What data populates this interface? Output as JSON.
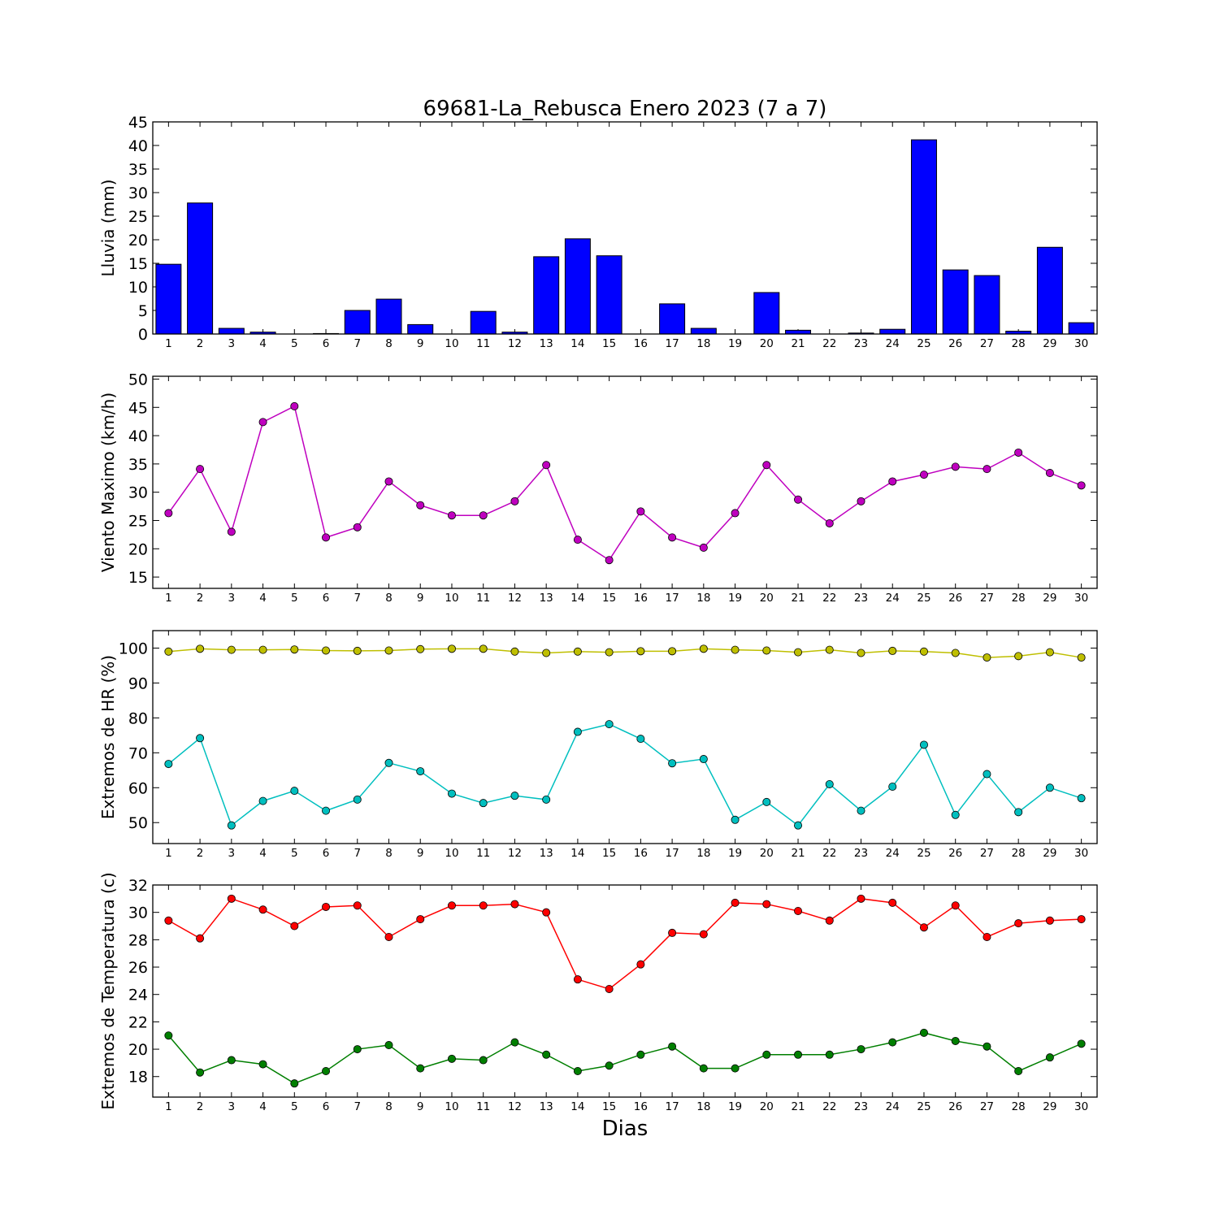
{
  "figure": {
    "title": "69681-La_Rebusca Enero 2023  (7 a 7)",
    "xlabel": "Dias"
  },
  "chart_data": [
    {
      "type": "bar",
      "ylabel": "Lluvia (mm)",
      "ylim": [
        0,
        45
      ],
      "yticks": [
        0,
        5,
        10,
        15,
        20,
        25,
        30,
        35,
        40,
        45
      ],
      "categories": [
        1,
        2,
        3,
        4,
        5,
        6,
        7,
        8,
        9,
        10,
        11,
        12,
        13,
        14,
        15,
        16,
        17,
        18,
        19,
        20,
        21,
        22,
        23,
        24,
        25,
        26,
        27,
        28,
        29,
        30
      ],
      "series": [
        {
          "color": "#0000ff",
          "values": [
            14.8,
            27.8,
            1.2,
            0.4,
            0,
            0.1,
            5.0,
            7.4,
            2.0,
            0,
            4.8,
            0.4,
            16.4,
            20.2,
            16.6,
            0,
            6.4,
            1.2,
            0,
            8.8,
            0.8,
            0,
            0.2,
            1.0,
            41.2,
            13.6,
            12.4,
            0.6,
            18.4,
            2.4
          ]
        }
      ]
    },
    {
      "type": "line",
      "ylabel": "Viento Maximo (km/h)",
      "ylim": [
        13,
        50.5
      ],
      "yticks": [
        15,
        20,
        25,
        30,
        35,
        40,
        45,
        50
      ],
      "x": [
        1,
        2,
        3,
        4,
        5,
        6,
        7,
        8,
        9,
        10,
        11,
        12,
        13,
        14,
        15,
        16,
        17,
        18,
        19,
        20,
        21,
        22,
        23,
        24,
        25,
        26,
        27,
        28,
        29,
        30
      ],
      "series": [
        {
          "color": "#bf00bf",
          "values": [
            26.3,
            34.1,
            23.0,
            42.4,
            45.2,
            22.0,
            23.8,
            31.9,
            27.7,
            25.9,
            25.9,
            28.4,
            34.8,
            21.6,
            18.0,
            26.6,
            22.0,
            20.2,
            26.3,
            34.8,
            28.7,
            24.5,
            28.4,
            31.9,
            33.1,
            34.5,
            34.1,
            37.0,
            33.4,
            31.2
          ]
        }
      ]
    },
    {
      "type": "line",
      "ylabel": "Extremos de HR (%)",
      "ylim": [
        44,
        105
      ],
      "yticks": [
        50,
        60,
        70,
        80,
        90,
        100
      ],
      "x": [
        1,
        2,
        3,
        4,
        5,
        6,
        7,
        8,
        9,
        10,
        11,
        12,
        13,
        14,
        15,
        16,
        17,
        18,
        19,
        20,
        21,
        22,
        23,
        24,
        25,
        26,
        27,
        28,
        29,
        30
      ],
      "series": [
        {
          "color": "#bfbf00",
          "values": [
            99,
            99.8,
            99.5,
            99.5,
            99.6,
            99.3,
            99.2,
            99.3,
            99.7,
            99.8,
            99.8,
            99,
            98.6,
            99,
            98.8,
            99.1,
            99.1,
            99.8,
            99.5,
            99.3,
            98.8,
            99.5,
            98.6,
            99.2,
            99,
            98.6,
            97.3,
            97.7,
            98.8,
            97.3
          ]
        },
        {
          "color": "#00bfbf",
          "values": [
            66.8,
            74.2,
            49.2,
            56.2,
            59.1,
            53.4,
            56.6,
            67.1,
            64.7,
            58.3,
            55.6,
            57.7,
            56.6,
            76.0,
            78.2,
            74.0,
            67.0,
            68.2,
            50.8,
            55.9,
            49.2,
            61.0,
            53.4,
            60.3,
            72.3,
            52.2,
            63.9,
            53.0,
            60.0,
            57.0
          ]
        }
      ]
    },
    {
      "type": "line",
      "ylabel": "Extremos de Temperatura (c)",
      "ylim": [
        16.5,
        32
      ],
      "yticks": [
        18,
        20,
        22,
        24,
        26,
        28,
        30,
        32
      ],
      "x": [
        1,
        2,
        3,
        4,
        5,
        6,
        7,
        8,
        9,
        10,
        11,
        12,
        13,
        14,
        15,
        16,
        17,
        18,
        19,
        20,
        21,
        22,
        23,
        24,
        25,
        26,
        27,
        28,
        29,
        30
      ],
      "series": [
        {
          "color": "#ff0000",
          "values": [
            29.4,
            28.1,
            31.0,
            30.2,
            29.0,
            30.4,
            30.5,
            28.2,
            29.5,
            30.5,
            30.5,
            30.6,
            30.0,
            25.1,
            24.4,
            26.2,
            28.5,
            28.4,
            30.7,
            30.6,
            30.1,
            29.4,
            31.0,
            30.7,
            28.9,
            30.5,
            28.2,
            29.2,
            29.4,
            29.5
          ]
        },
        {
          "color": "#007f00",
          "values": [
            21.0,
            18.3,
            19.2,
            18.9,
            17.5,
            18.4,
            20.0,
            20.3,
            18.6,
            19.3,
            19.2,
            20.5,
            19.6,
            18.4,
            18.8,
            19.6,
            20.2,
            18.6,
            18.6,
            19.6,
            19.6,
            19.6,
            20.0,
            20.5,
            21.2,
            20.6,
            20.2,
            18.4,
            19.4,
            20.4
          ]
        }
      ]
    }
  ]
}
